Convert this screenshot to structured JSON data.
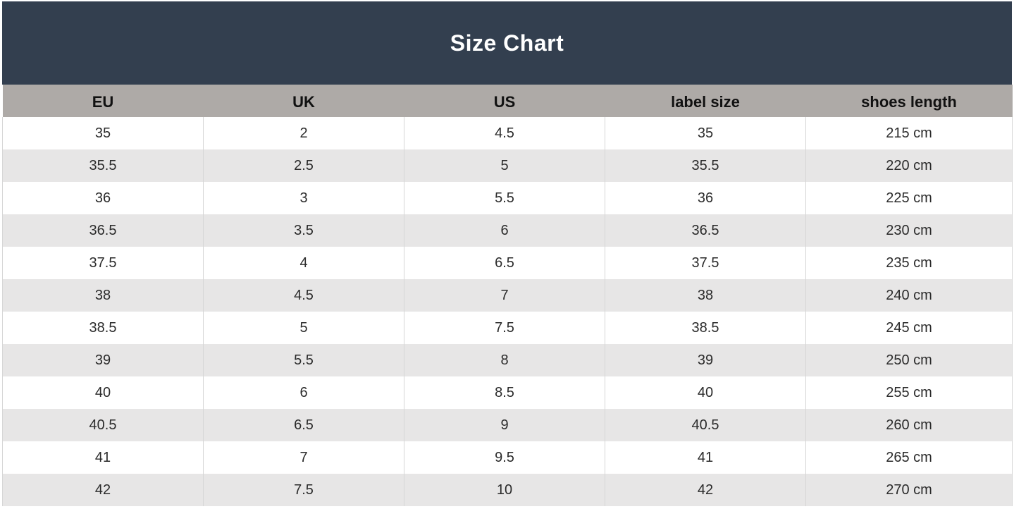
{
  "title": "Size Chart",
  "columns": [
    "EU",
    "UK",
    "US",
    "label size",
    "shoes length"
  ],
  "rows": [
    [
      "35",
      "2",
      "4.5",
      "35",
      "215 cm"
    ],
    [
      "35.5",
      "2.5",
      "5",
      "35.5",
      "220 cm"
    ],
    [
      "36",
      "3",
      "5.5",
      "36",
      "225 cm"
    ],
    [
      "36.5",
      "3.5",
      "6",
      "36.5",
      "230 cm"
    ],
    [
      "37.5",
      "4",
      "6.5",
      "37.5",
      "235 cm"
    ],
    [
      "38",
      "4.5",
      "7",
      "38",
      "240 cm"
    ],
    [
      "38.5",
      "5",
      "7.5",
      "38.5",
      "245 cm"
    ],
    [
      "39",
      "5.5",
      "8",
      "39",
      "250 cm"
    ],
    [
      "40",
      "6",
      "8.5",
      "40",
      "255 cm"
    ],
    [
      "40.5",
      "6.5",
      "9",
      "40.5",
      "260 cm"
    ],
    [
      "41",
      "7",
      "9.5",
      "41",
      "265 cm"
    ],
    [
      "42",
      "7.5",
      "10",
      "42",
      "270 cm"
    ]
  ],
  "colors": {
    "title_background": "#333f4f",
    "header_background": "#aeaaa7",
    "stripe_background": "#e7e6e6"
  }
}
